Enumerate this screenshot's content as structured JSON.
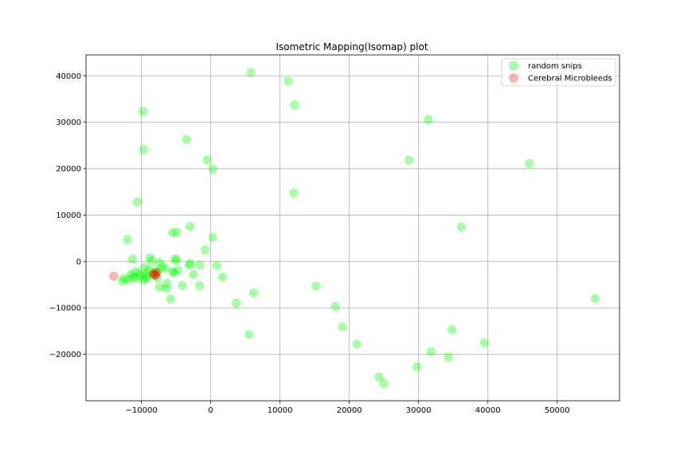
{
  "chart_data": {
    "type": "scatter",
    "title": "Isometric Mapping(Isomap) plot",
    "xlabel": "",
    "ylabel": "",
    "xlim": [
      -18000,
      59000
    ],
    "ylim": [
      -30000,
      44500
    ],
    "xticks": [
      -10000,
      0,
      10000,
      20000,
      30000,
      40000,
      50000
    ],
    "yticks": [
      -20000,
      -10000,
      0,
      10000,
      20000,
      30000,
      40000
    ],
    "xtick_labels": [
      "−10000",
      "0",
      "10000",
      "20000",
      "30000",
      "40000",
      "50000"
    ],
    "ytick_labels": [
      "−20000",
      "−10000",
      "0",
      "10000",
      "20000",
      "30000",
      "40000"
    ],
    "grid": true,
    "legend_position": "top-right",
    "series": [
      {
        "name": "random snips",
        "color": "#00ff00",
        "alpha": 0.35,
        "points": [
          [
            5800,
            40700
          ],
          [
            11200,
            38800
          ],
          [
            12100,
            33700
          ],
          [
            -9800,
            32300
          ],
          [
            31400,
            30500
          ],
          [
            -3500,
            26300
          ],
          [
            -9700,
            24100
          ],
          [
            -500,
            21900
          ],
          [
            28600,
            21800
          ],
          [
            46000,
            21100
          ],
          [
            300,
            19900
          ],
          [
            12000,
            14700
          ],
          [
            -10600,
            12800
          ],
          [
            36200,
            7400
          ],
          [
            -3000,
            7500
          ],
          [
            -5500,
            6200
          ],
          [
            -4900,
            6300
          ],
          [
            -12000,
            4700
          ],
          [
            300,
            5200
          ],
          [
            -800,
            2500
          ],
          [
            -11300,
            500
          ],
          [
            -8800,
            800
          ],
          [
            -8500,
            200
          ],
          [
            -5100,
            600
          ],
          [
            -5000,
            200
          ],
          [
            -7400,
            -200
          ],
          [
            -3000,
            -400
          ],
          [
            -9500,
            -1200
          ],
          [
            -7000,
            -1100
          ],
          [
            -3100,
            -900
          ],
          [
            -1600,
            -800
          ],
          [
            900,
            -900
          ],
          [
            -10800,
            -2200
          ],
          [
            -9000,
            -1800
          ],
          [
            -8000,
            -1900
          ],
          [
            -6600,
            -1500
          ],
          [
            -5500,
            -2200
          ],
          [
            -4700,
            -1900
          ],
          [
            -11500,
            -2700
          ],
          [
            -10300,
            -2500
          ],
          [
            -9200,
            -2600
          ],
          [
            -7700,
            -2300
          ],
          [
            -5300,
            -2400
          ],
          [
            -2500,
            -2800
          ],
          [
            -11200,
            -3300
          ],
          [
            -10100,
            -3100
          ],
          [
            -9200,
            -3300
          ],
          [
            -8300,
            -3000
          ],
          [
            -12500,
            -3700
          ],
          [
            -11900,
            -3900
          ],
          [
            -11000,
            -3600
          ],
          [
            -7700,
            -3600
          ],
          [
            -12800,
            -4200
          ],
          [
            -9800,
            -4000
          ],
          [
            -9400,
            -3700
          ],
          [
            -6300,
            -4700
          ],
          [
            1700,
            -3400
          ],
          [
            -7400,
            -5600
          ],
          [
            -4100,
            -5200
          ],
          [
            -1600,
            -5200
          ],
          [
            -6400,
            -5800
          ],
          [
            15200,
            -5300
          ],
          [
            6200,
            -6800
          ],
          [
            -5800,
            -8100
          ],
          [
            3700,
            -9000
          ],
          [
            18000,
            -9700
          ],
          [
            55500,
            -8000
          ],
          [
            19000,
            -14100
          ],
          [
            34800,
            -14700
          ],
          [
            5500,
            -15700
          ],
          [
            39500,
            -17500
          ],
          [
            21100,
            -17800
          ],
          [
            31800,
            -19400
          ],
          [
            34300,
            -20600
          ],
          [
            29800,
            -22700
          ],
          [
            24300,
            -24900
          ],
          [
            25000,
            -26300
          ]
        ]
      },
      {
        "name": "Cerebral Microbleeds",
        "color": "#ff0000",
        "alpha": 0.3,
        "points": [
          [
            -14000,
            -3200
          ],
          [
            -8100,
            -2800
          ],
          [
            -7900,
            -3000
          ],
          [
            -8300,
            -2600
          ],
          [
            -7800,
            -2400
          ]
        ]
      }
    ]
  }
}
